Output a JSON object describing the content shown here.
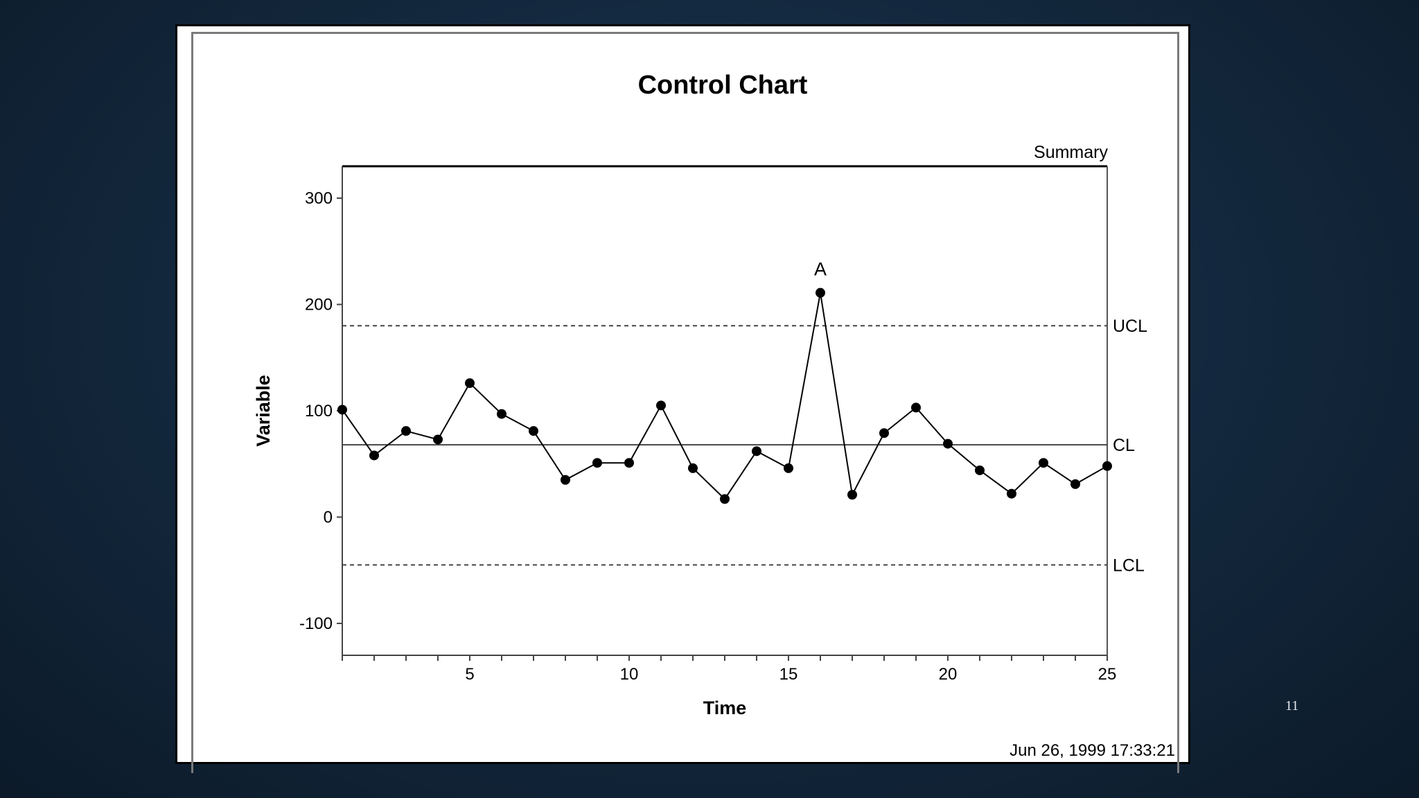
{
  "slide": {
    "page_number": "11"
  },
  "chart_data": {
    "type": "line",
    "title": "Control Chart",
    "subtitle": "Summary",
    "xlabel": "Time",
    "ylabel": "Variable",
    "timestamp": "Jun 26, 1999 17:33:21",
    "xlim": [
      1,
      25
    ],
    "ylim": [
      -130,
      330
    ],
    "x_ticks_labeled": [
      5,
      10,
      15,
      20,
      25
    ],
    "y_ticks": [
      300,
      200,
      100,
      0,
      -100
    ],
    "x": [
      1,
      2,
      3,
      4,
      5,
      6,
      7,
      8,
      9,
      10,
      11,
      12,
      13,
      14,
      15,
      16,
      17,
      18,
      19,
      20,
      21,
      22,
      23,
      24,
      25
    ],
    "values": [
      101,
      58,
      81,
      73,
      126,
      97,
      81,
      35,
      51,
      51,
      105,
      46,
      17,
      62,
      46,
      211,
      21,
      79,
      103,
      69,
      44,
      22,
      51,
      31,
      48
    ],
    "control_limits": [
      {
        "label": "UCL",
        "value": 180,
        "style": "dashed"
      },
      {
        "label": "CL",
        "value": 68,
        "style": "solid"
      },
      {
        "label": "LCL",
        "value": -45,
        "style": "dashed"
      }
    ],
    "annotations": [
      {
        "x": 16,
        "text": "A"
      }
    ],
    "grid": false,
    "legend": "none",
    "colors": {
      "line": "#000000",
      "frame_bg": "#ffffff"
    }
  }
}
